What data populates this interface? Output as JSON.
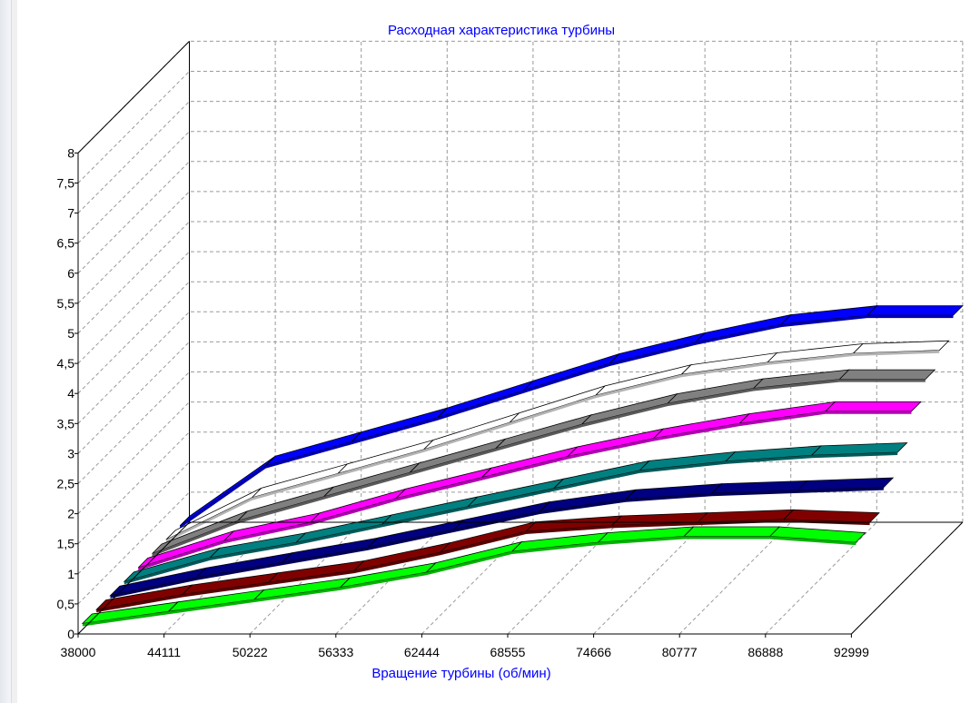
{
  "chart_data": {
    "type": "area",
    "title": "Расходная характеристика турбины",
    "xlabel": "Вращение турбины (об/мин)",
    "ylabel": "",
    "x_tick_labels": [
      "38000",
      "44111",
      "50222",
      "56333",
      "62444",
      "68555",
      "74666",
      "80777",
      "86888",
      "92999"
    ],
    "y_tick_labels": [
      "0",
      "0,5",
      "1",
      "1,5",
      "2",
      "2,5",
      "3",
      "3,5",
      "4",
      "4,5",
      "5",
      "5,5",
      "6",
      "6,5",
      "7",
      "7,5",
      "8"
    ],
    "ylim": [
      0,
      8
    ],
    "grid": true,
    "legend": "none",
    "series": [
      {
        "color": "#0000ff",
        "values": [
          0.1,
          1.1,
          1.5,
          1.9,
          2.35,
          2.8,
          3.15,
          3.45,
          3.6,
          3.6
        ]
      },
      {
        "color": "#ffffff",
        "values": [
          0.1,
          0.8,
          1.2,
          1.6,
          2.05,
          2.5,
          2.85,
          3.05,
          3.2,
          3.25
        ]
      },
      {
        "color": "#808080",
        "values": [
          0.1,
          0.65,
          1.05,
          1.45,
          1.85,
          2.25,
          2.6,
          2.85,
          3.0,
          3.0
        ]
      },
      {
        "color": "#ff00ff",
        "values": [
          0.1,
          0.55,
          0.85,
          1.25,
          1.6,
          1.95,
          2.25,
          2.5,
          2.7,
          2.7
        ]
      },
      {
        "color": "#008080",
        "values": [
          0.1,
          0.5,
          0.75,
          1.05,
          1.35,
          1.65,
          1.95,
          2.1,
          2.2,
          2.25
        ]
      },
      {
        "color": "#000080",
        "values": [
          0.1,
          0.4,
          0.65,
          0.9,
          1.2,
          1.5,
          1.7,
          1.8,
          1.85,
          1.9
        ]
      },
      {
        "color": "#800000",
        "values": [
          0.1,
          0.35,
          0.55,
          0.75,
          1.05,
          1.4,
          1.5,
          1.55,
          1.6,
          1.55
        ]
      },
      {
        "color": "#00ff00",
        "values": [
          0.1,
          0.3,
          0.5,
          0.7,
          0.95,
          1.3,
          1.45,
          1.55,
          1.55,
          1.45
        ]
      }
    ]
  }
}
